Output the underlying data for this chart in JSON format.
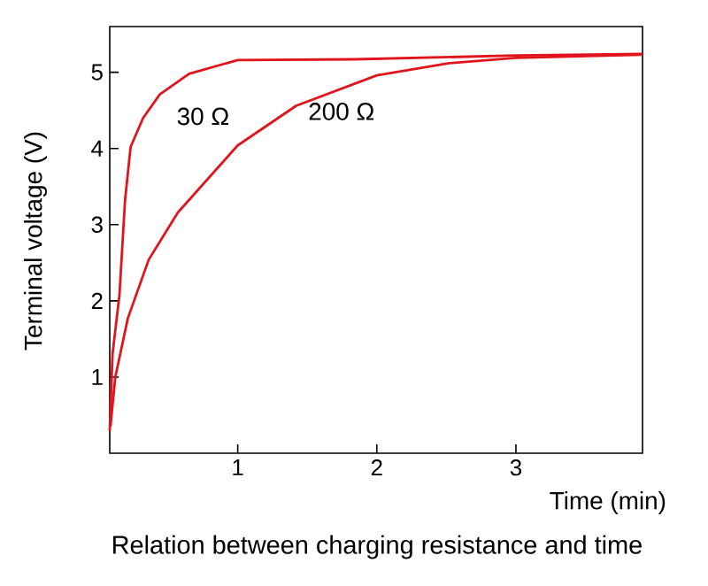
{
  "chart_data": {
    "type": "line",
    "title": "Relation between charging resistance and time",
    "xlabel": "Time (min)",
    "ylabel": "Terminal voltage (V)",
    "xlim": [
      0.08,
      3.91
    ],
    "ylim": [
      0,
      5.6
    ],
    "xticks": [
      1,
      2,
      3
    ],
    "yticks": [
      1,
      2,
      3,
      4,
      5
    ],
    "grid": false,
    "marker": "none",
    "line_style": "solid",
    "series": [
      {
        "name": "30 Ω",
        "color": "#e0141c",
        "x": [
          0.08,
          0.1,
          0.15,
          0.19,
          0.23,
          0.32,
          0.44,
          0.65,
          1.0,
          1.84,
          3.0,
          3.91
        ],
        "values": [
          0.29,
          1.3,
          2.08,
          3.32,
          4.02,
          4.4,
          4.71,
          4.98,
          5.16,
          5.17,
          5.22,
          5.24
        ]
      },
      {
        "name": "200 Ω",
        "color": "#e0141c",
        "x": [
          0.085,
          0.12,
          0.21,
          0.36,
          0.57,
          1.0,
          1.42,
          2.0,
          2.52,
          3.0,
          3.9
        ],
        "values": [
          0.35,
          1.0,
          1.77,
          2.54,
          3.16,
          4.04,
          4.56,
          4.96,
          5.12,
          5.19,
          5.23
        ]
      }
    ]
  }
}
